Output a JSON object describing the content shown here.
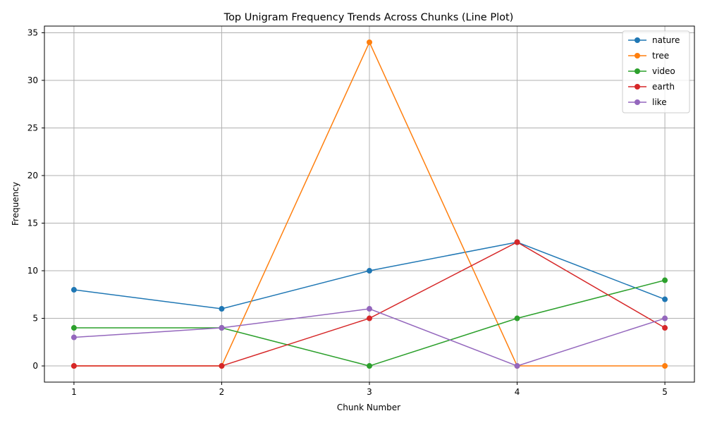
{
  "chart_data": {
    "type": "line",
    "title": "Top Unigram Frequency Trends Across Chunks (Line Plot)",
    "xlabel": "Chunk Number",
    "ylabel": "Frequency",
    "x": [
      1,
      2,
      3,
      4,
      5
    ],
    "xlim": [
      0.8,
      5.2
    ],
    "ylim": [
      -1.7,
      35.7
    ],
    "yticks": [
      0,
      5,
      10,
      15,
      20,
      25,
      30,
      35
    ],
    "grid": true,
    "legend_position": "top-right",
    "series": [
      {
        "name": "nature",
        "color": "#1f77b4",
        "values": [
          8,
          6,
          10,
          13,
          7
        ]
      },
      {
        "name": "tree",
        "color": "#ff7f0e",
        "values": [
          0,
          0,
          34,
          0,
          0
        ]
      },
      {
        "name": "video",
        "color": "#2ca02c",
        "values": [
          4,
          4,
          0,
          5,
          9
        ]
      },
      {
        "name": "earth",
        "color": "#d62728",
        "values": [
          0,
          0,
          5,
          13,
          4
        ]
      },
      {
        "name": "like",
        "color": "#9467bd",
        "values": [
          3,
          4,
          6,
          0,
          5
        ]
      }
    ]
  }
}
